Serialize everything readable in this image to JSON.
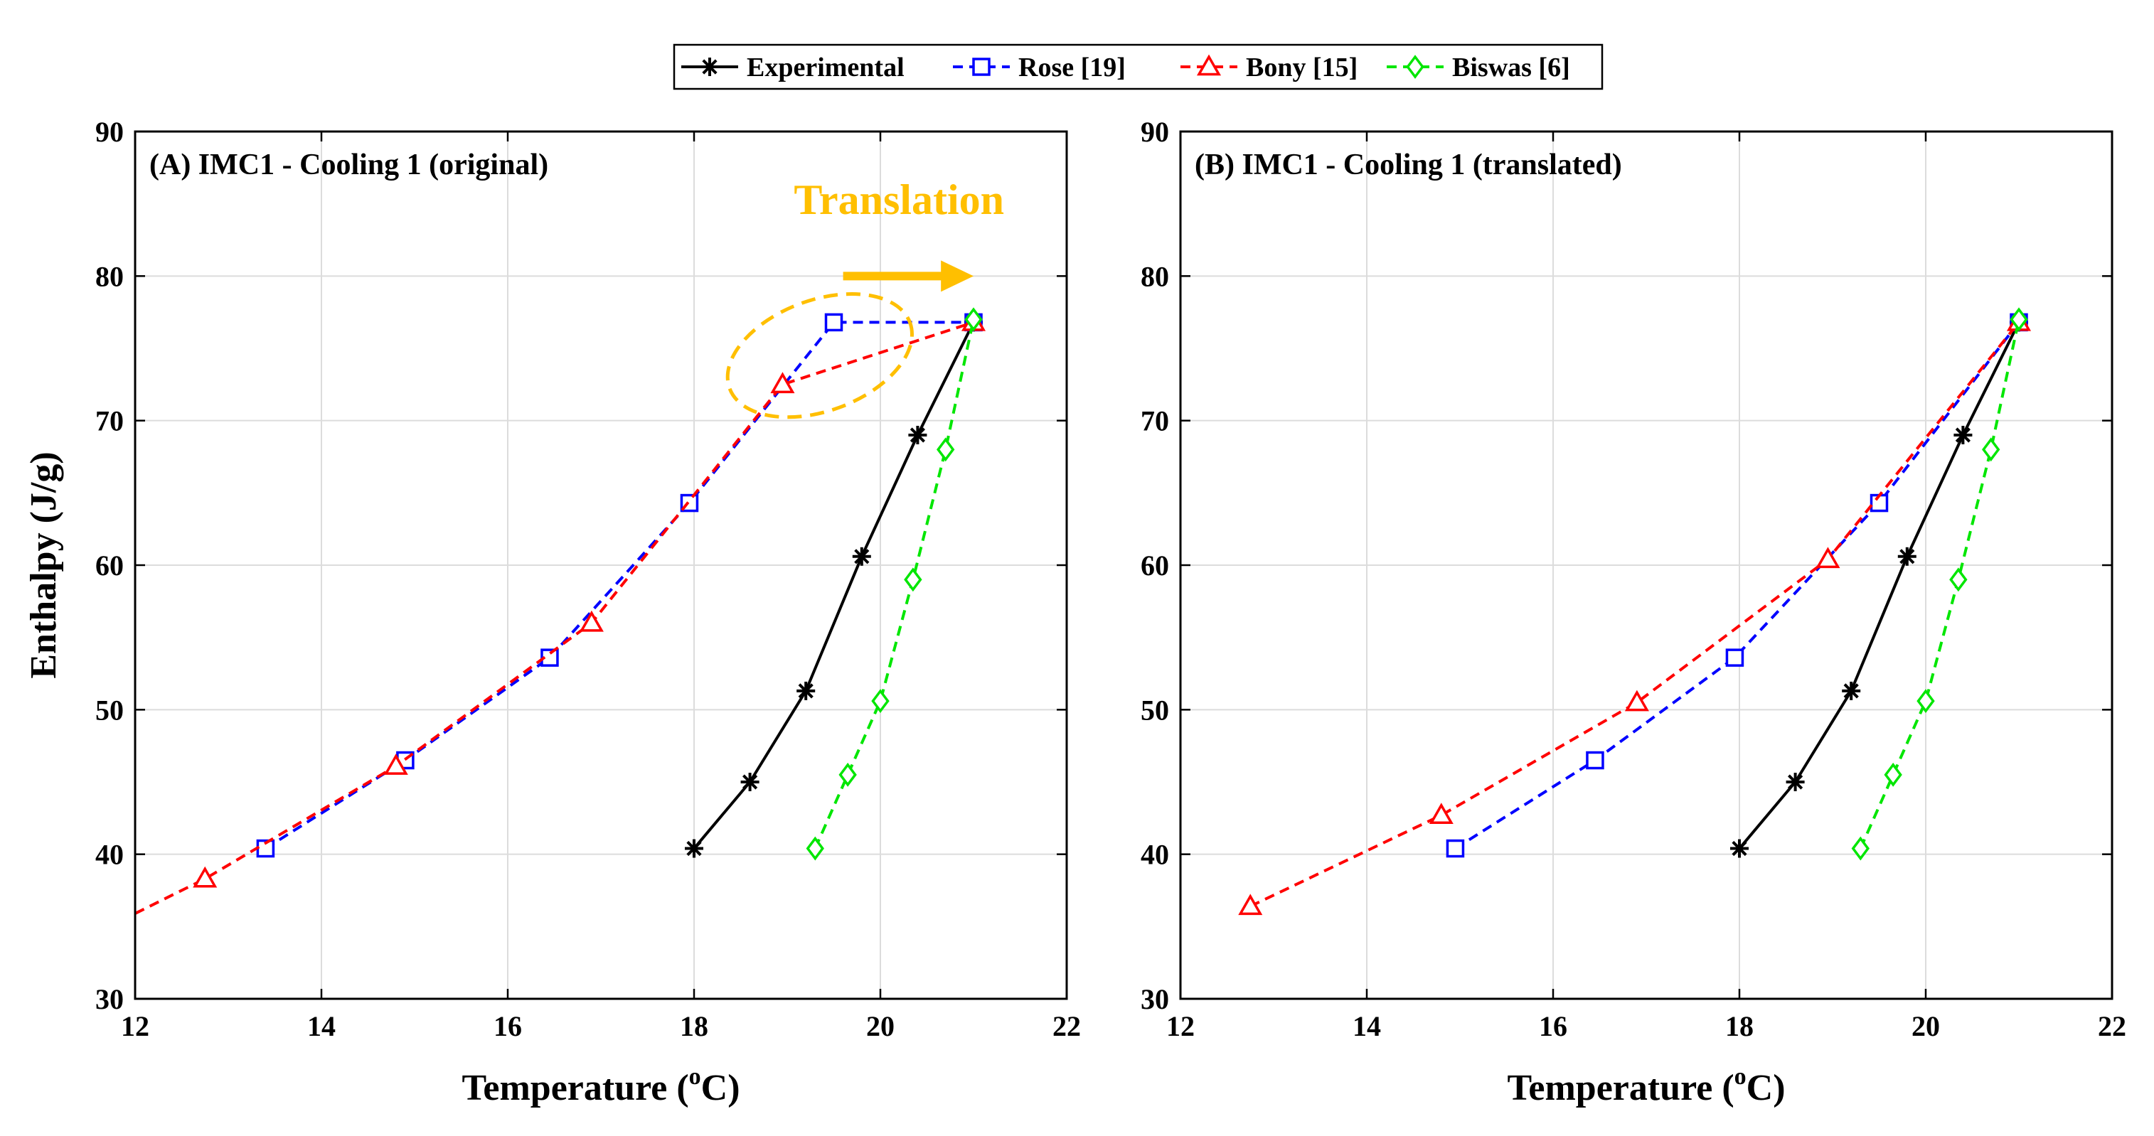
{
  "legend": {
    "entries": [
      {
        "label": "Experimental",
        "color": "#000000",
        "marker": "asterisk",
        "dash": "solid"
      },
      {
        "label": "Rose [19]",
        "color": "#0000ff",
        "marker": "square",
        "dash": "dashed"
      },
      {
        "label": "Bony [15]",
        "color": "#ff0000",
        "marker": "triangle",
        "dash": "dashed"
      },
      {
        "label": "Biswas [6]",
        "color": "#00e600",
        "marker": "diamond",
        "dash": "dashed"
      }
    ]
  },
  "annotation": {
    "text": "Translation",
    "color": "#ffbf00"
  },
  "chart_data": [
    {
      "type": "line",
      "title": "(A) IMC1 - Cooling 1 (original)",
      "xlabel": "Temperature (",
      "xlabel_sup": "o",
      "xlabel_end": "C)",
      "ylabel": "Enthalpy (J/g)",
      "xlim": [
        12,
        22
      ],
      "ylim": [
        30,
        90
      ],
      "xticks": [
        12,
        14,
        16,
        18,
        20,
        22
      ],
      "yticks": [
        30,
        40,
        50,
        60,
        70,
        80,
        90
      ],
      "grid": true,
      "series": [
        {
          "name": "Experimental",
          "x": [
            18.0,
            18.6,
            19.2,
            19.8,
            20.4,
            21.0
          ],
          "y": [
            40.4,
            45.0,
            51.3,
            60.6,
            69.0,
            76.8
          ]
        },
        {
          "name": "Rose [19]",
          "x": [
            13.4,
            14.9,
            16.45,
            17.95,
            19.5,
            21.0
          ],
          "y": [
            40.4,
            46.5,
            53.6,
            64.3,
            76.8,
            76.8
          ]
        },
        {
          "name": "Bony [15]",
          "x": [
            12.0,
            12.75,
            14.8,
            16.9,
            18.95,
            21.0
          ],
          "y": [
            35.9,
            38.3,
            46.1,
            56.0,
            72.5,
            76.8
          ]
        },
        {
          "name": "Biswas [6]",
          "x": [
            19.3,
            19.65,
            20.0,
            20.35,
            20.7,
            21.0
          ],
          "y": [
            40.4,
            45.5,
            50.6,
            59.0,
            68.0,
            77.0
          ]
        }
      ]
    },
    {
      "type": "line",
      "title": "(B) IMC1 - Cooling 1 (translated)",
      "xlabel": "Temperature (",
      "xlabel_sup": "o",
      "xlabel_end": "C)",
      "ylabel": "",
      "xlim": [
        12,
        22
      ],
      "ylim": [
        30,
        90
      ],
      "xticks": [
        12,
        14,
        16,
        18,
        20,
        22
      ],
      "yticks": [
        30,
        40,
        50,
        60,
        70,
        80,
        90
      ],
      "grid": true,
      "series": [
        {
          "name": "Experimental",
          "x": [
            18.0,
            18.6,
            19.2,
            19.8,
            20.4,
            21.0
          ],
          "y": [
            40.4,
            45.0,
            51.3,
            60.6,
            69.0,
            76.8
          ]
        },
        {
          "name": "Rose [19]",
          "x": [
            14.95,
            16.45,
            17.95,
            19.5,
            21.0
          ],
          "y": [
            40.4,
            46.5,
            53.6,
            64.3,
            76.8
          ]
        },
        {
          "name": "Bony [15]",
          "x": [
            12.75,
            14.8,
            16.9,
            18.95,
            21.0
          ],
          "y": [
            36.4,
            42.7,
            50.5,
            60.4,
            76.8
          ]
        },
        {
          "name": "Biswas [6]",
          "x": [
            19.3,
            19.65,
            20.0,
            20.35,
            20.7,
            21.0
          ],
          "y": [
            40.4,
            45.5,
            50.6,
            59.0,
            68.0,
            77.0
          ]
        }
      ]
    }
  ]
}
